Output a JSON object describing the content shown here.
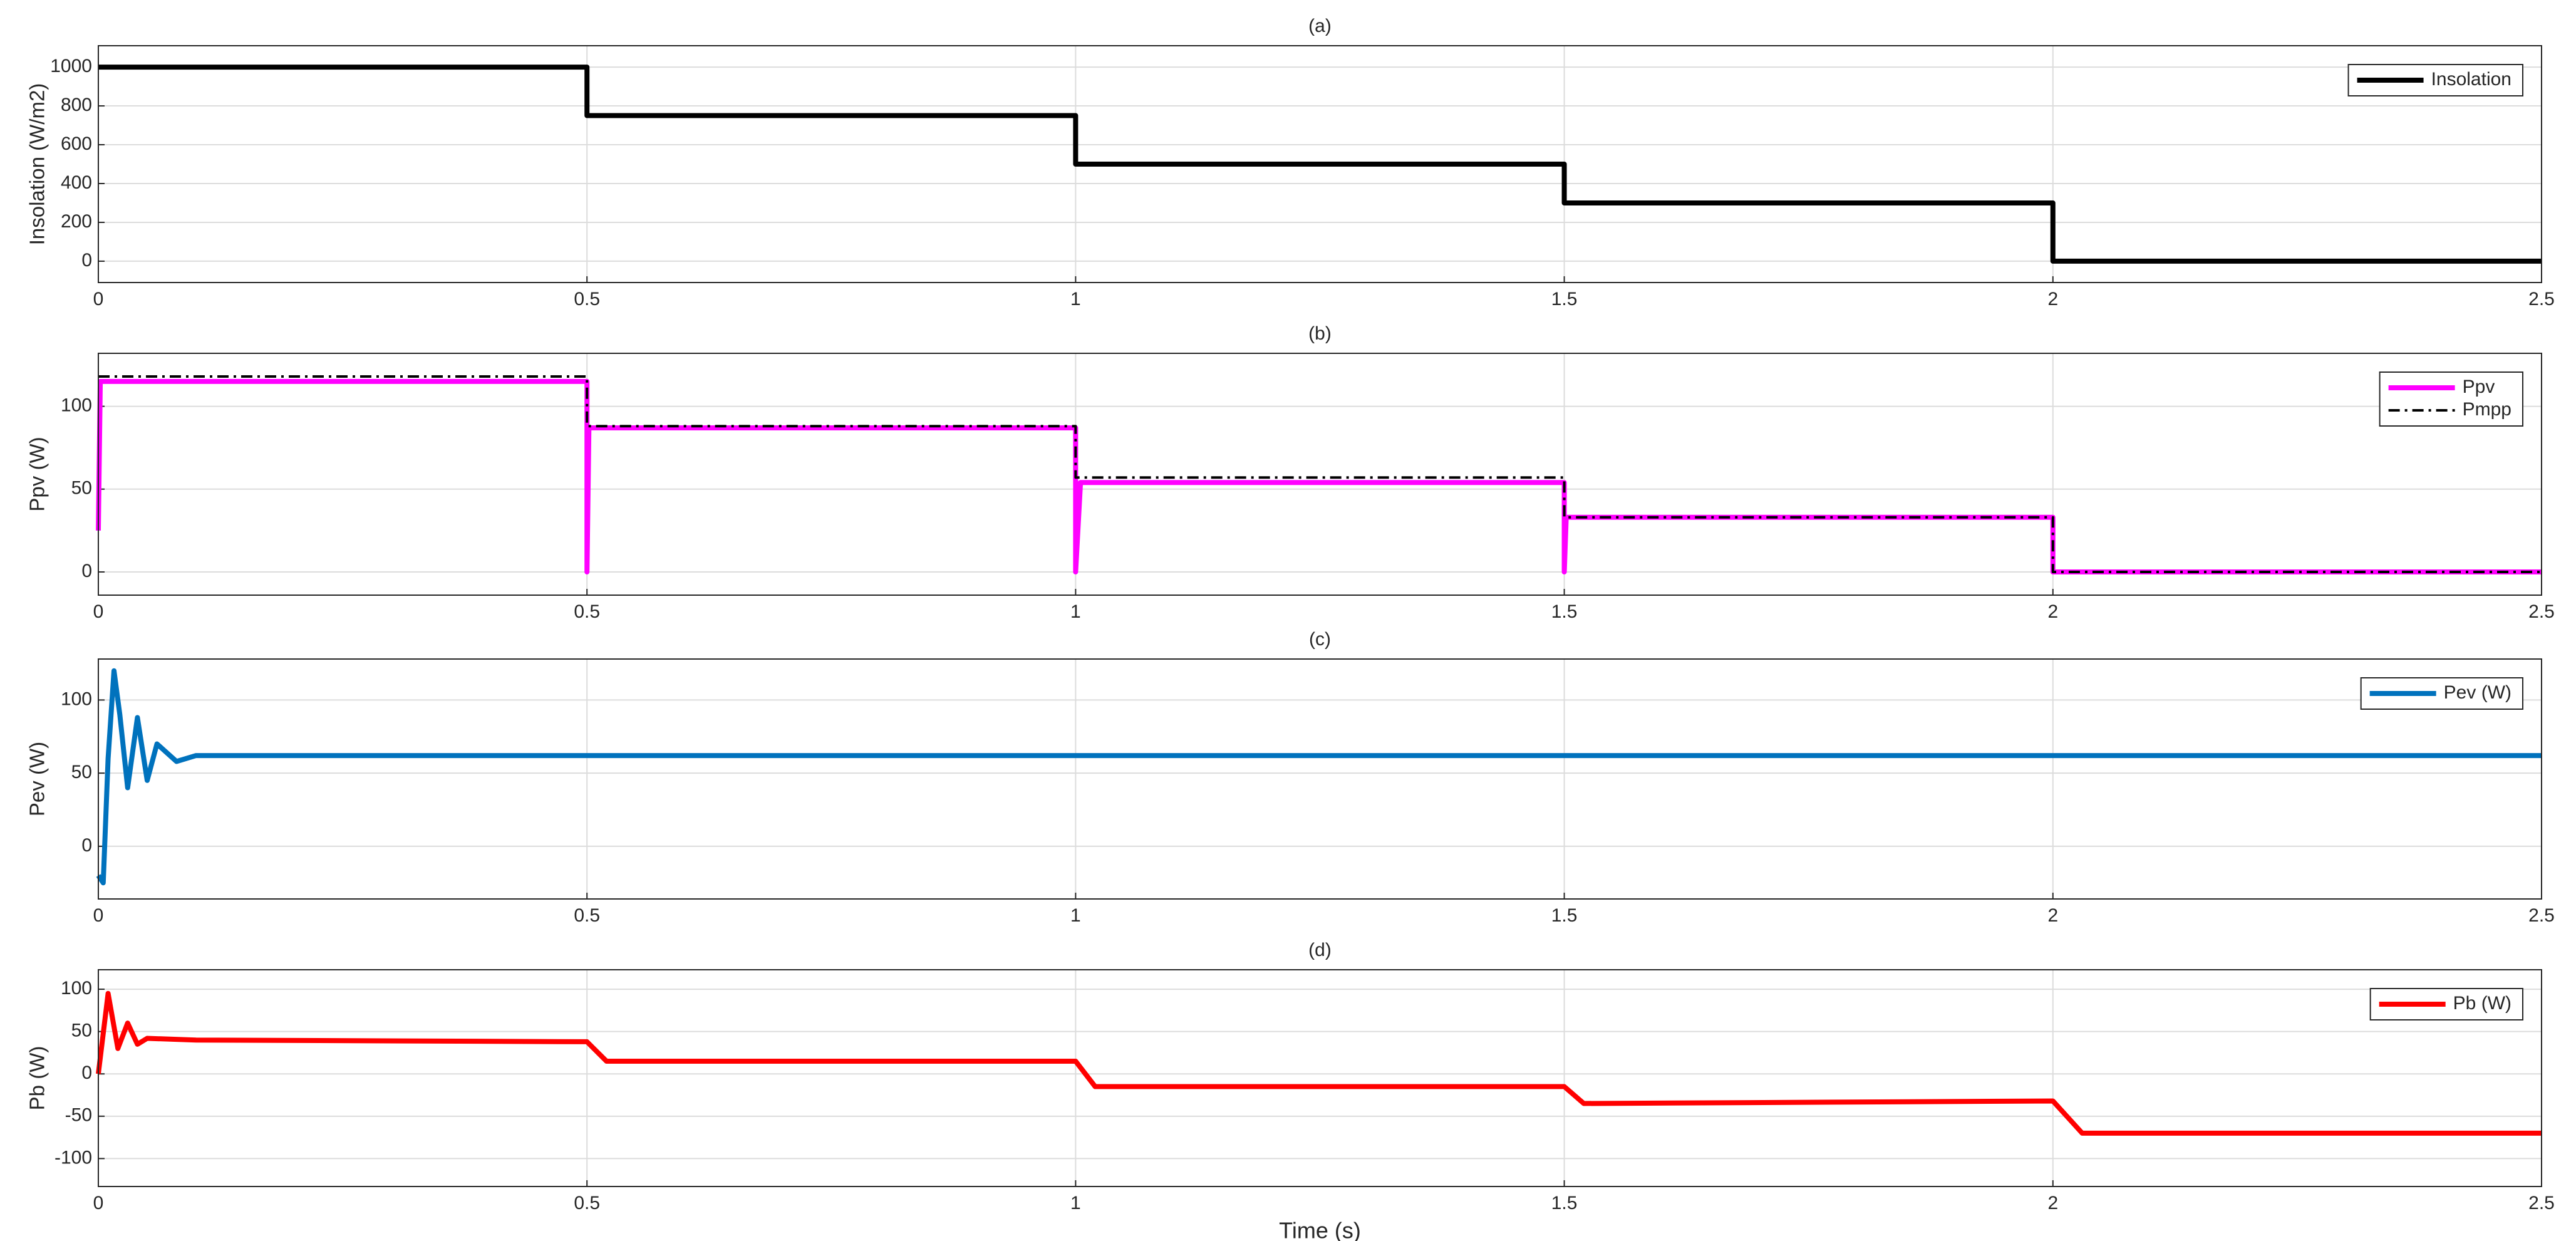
{
  "chart_data": [
    {
      "type": "line",
      "title": "(a)",
      "ylabel": "Insolation (W/m2)",
      "xlim": [
        0,
        2.5
      ],
      "xticks": [
        0,
        0.5,
        1,
        1.5,
        2,
        2.5
      ],
      "ylim": [
        -110,
        1110
      ],
      "yticks": [
        0,
        200,
        400,
        600,
        800,
        1000
      ],
      "grid": true,
      "legend": "upper right",
      "series": [
        {
          "name": "Insolation",
          "color": "#000000",
          "dash": "solid",
          "x": [
            0,
            0.5,
            0.5,
            1,
            1,
            1.5,
            1.5,
            2,
            2,
            2.5
          ],
          "values": [
            1000,
            1000,
            750,
            750,
            500,
            500,
            300,
            300,
            0,
            0
          ]
        }
      ]
    },
    {
      "type": "line",
      "title": "(b)",
      "ylabel": "Ppv (W)",
      "xlim": [
        0,
        2.5
      ],
      "xticks": [
        0,
        0.5,
        1,
        1.5,
        2,
        2.5
      ],
      "ylim": [
        -14,
        132
      ],
      "yticks": [
        0,
        50,
        100
      ],
      "grid": true,
      "legend": "upper right",
      "series": [
        {
          "name": "Ppv",
          "color": "#ff00ff",
          "dash": "solid",
          "x": [
            0,
            0.002,
            0.5,
            0.5,
            0.502,
            1,
            1,
            1.005,
            1.5,
            1.5,
            1.502,
            2,
            2,
            2.5
          ],
          "values": [
            25,
            115,
            115,
            0,
            87,
            87,
            0,
            54,
            54,
            0,
            33,
            33,
            0,
            0
          ]
        },
        {
          "name": "Pmpp",
          "color": "#000000",
          "dash": "dashdot",
          "x": [
            0,
            0.5,
            0.5,
            1,
            1,
            1.5,
            1.5,
            2,
            2,
            2.5
          ],
          "values": [
            118,
            118,
            88,
            88,
            57,
            57,
            33,
            33,
            0,
            0
          ]
        }
      ]
    },
    {
      "type": "line",
      "title": "(c)",
      "ylabel": "Pev (W)",
      "xlim": [
        0,
        2.5
      ],
      "xticks": [
        0,
        0.5,
        1,
        1.5,
        2,
        2.5
      ],
      "ylim": [
        -36,
        128
      ],
      "yticks": [
        0,
        50,
        100
      ],
      "grid": true,
      "legend": "upper right",
      "series": [
        {
          "name": "Pev (W)",
          "color": "#0072bd",
          "dash": "solid",
          "x": [
            0,
            0.005,
            0.01,
            0.016,
            0.022,
            0.03,
            0.04,
            0.05,
            0.06,
            0.08,
            0.1,
            0.5,
            1,
            1.5,
            2,
            2.5
          ],
          "values": [
            -20,
            -25,
            60,
            120,
            90,
            40,
            88,
            45,
            70,
            58,
            62,
            62,
            62,
            62,
            62,
            62
          ]
        }
      ]
    },
    {
      "type": "line",
      "title": "(d)",
      "ylabel": "Pb (W)",
      "xlabel": "Time (s)",
      "xlim": [
        0,
        2.5
      ],
      "xticks": [
        0,
        0.5,
        1,
        1.5,
        2,
        2.5
      ],
      "ylim": [
        -133,
        123
      ],
      "yticks": [
        -100,
        -50,
        0,
        50,
        100
      ],
      "grid": true,
      "legend": "upper right",
      "series": [
        {
          "name": "Pb (W)",
          "color": "#ff0000",
          "dash": "solid",
          "x": [
            0,
            0.01,
            0.02,
            0.03,
            0.04,
            0.05,
            0.1,
            0.5,
            0.52,
            1,
            1.02,
            1.5,
            1.52,
            2,
            2.03,
            2.5
          ],
          "values": [
            0,
            95,
            30,
            60,
            35,
            42,
            40,
            38,
            15,
            15,
            -15,
            -15,
            -35,
            -32,
            -70,
            -70
          ]
        }
      ]
    }
  ]
}
